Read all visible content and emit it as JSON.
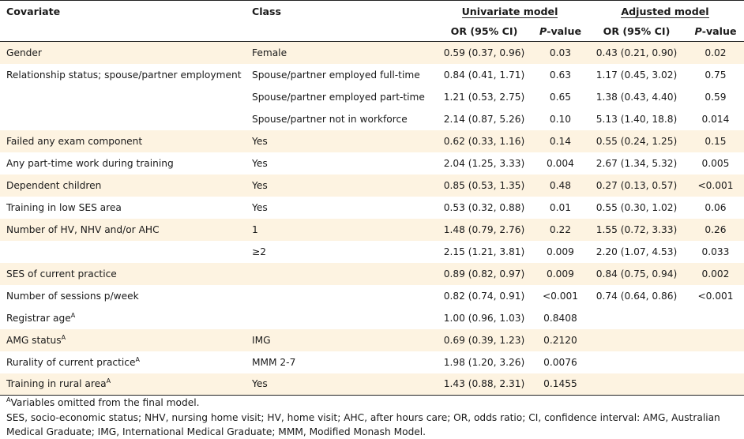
{
  "header": {
    "covariate": "Covariate",
    "class": "Class",
    "univariate": "Univariate model",
    "adjusted": "Adjusted model",
    "or_ci": "OR (95% CI)",
    "p_letter": "P",
    "p_suffix": "-value"
  },
  "rows": [
    {
      "covariate": "Gender",
      "sup": "",
      "class": "Female",
      "u_or": "0.59 (0.37, 0.96)",
      "u_p": "0.03",
      "a_or": "0.43 (0.21, 0.90)",
      "a_p": "0.02"
    },
    {
      "covariate": "Relationship status; spouse/partner employment",
      "sup": "",
      "class": "Spouse/partner employed full-time",
      "u_or": "0.84 (0.41, 1.71)",
      "u_p": "0.63",
      "a_or": "1.17 (0.45, 3.02)",
      "a_p": "0.75"
    },
    {
      "covariate": "",
      "sup": "",
      "class": "Spouse/partner employed part-time",
      "u_or": "1.21 (0.53, 2.75)",
      "u_p": "0.65",
      "a_or": "1.38 (0.43, 4.40)",
      "a_p": "0.59"
    },
    {
      "covariate": "",
      "sup": "",
      "class": "Spouse/partner not in workforce",
      "u_or": "2.14 (0.87, 5.26)",
      "u_p": "0.10",
      "a_or": "5.13 (1.40, 18.8)",
      "a_p": "0.014"
    },
    {
      "covariate": "Failed any exam component",
      "sup": "",
      "class": "Yes",
      "u_or": "0.62 (0.33, 1.16)",
      "u_p": "0.14",
      "a_or": "0.55 (0.24, 1.25)",
      "a_p": "0.15"
    },
    {
      "covariate": "Any part-time work during training",
      "sup": "",
      "class": "Yes",
      "u_or": "2.04 (1.25, 3.33)",
      "u_p": "0.004",
      "a_or": "2.67 (1.34, 5.32)",
      "a_p": "0.005"
    },
    {
      "covariate": "Dependent children",
      "sup": "",
      "class": "Yes",
      "u_or": "0.85 (0.53, 1.35)",
      "u_p": "0.48",
      "a_or": "0.27 (0.13, 0.57)",
      "a_p": "<0.001"
    },
    {
      "covariate": "Training in low SES area",
      "sup": "",
      "class": "Yes",
      "u_or": "0.53 (0.32, 0.88)",
      "u_p": "0.01",
      "a_or": "0.55 (0.30, 1.02)",
      "a_p": "0.06"
    },
    {
      "covariate": "Number of HV, NHV and/or AHC",
      "sup": "",
      "class": "1",
      "u_or": "1.48 (0.79, 2.76)",
      "u_p": "0.22",
      "a_or": "1.55 (0.72, 3.33)",
      "a_p": "0.26"
    },
    {
      "covariate": "",
      "sup": "",
      "class": "≥2",
      "u_or": "2.15 (1.21, 3.81)",
      "u_p": "0.009",
      "a_or": "2.20 (1.07, 4.53)",
      "a_p": "0.033"
    },
    {
      "covariate": "SES of current practice",
      "sup": "",
      "class": "",
      "u_or": "0.89 (0.82, 0.97)",
      "u_p": "0.009",
      "a_or": "0.84 (0.75, 0.94)",
      "a_p": "0.002"
    },
    {
      "covariate": "Number of sessions p/week",
      "sup": "",
      "class": "",
      "u_or": "0.82 (0.74, 0.91)",
      "u_p": "<0.001",
      "a_or": "0.74 (0.64, 0.86)",
      "a_p": "<0.001"
    },
    {
      "covariate": "Registrar age",
      "sup": "A",
      "class": "",
      "u_or": "1.00 (0.96, 1.03)",
      "u_p": "0.8408",
      "a_or": "",
      "a_p": ""
    },
    {
      "covariate": "AMG status",
      "sup": "A",
      "class": "IMG",
      "u_or": "0.69 (0.39, 1.23)",
      "u_p": "0.2120",
      "a_or": "",
      "a_p": ""
    },
    {
      "covariate": "Rurality of current practice",
      "sup": "A",
      "class": "MMM 2-7",
      "u_or": "1.98 (1.20, 3.26)",
      "u_p": "0.0076",
      "a_or": "",
      "a_p": ""
    },
    {
      "covariate": "Training in rural area",
      "sup": "A",
      "class": "Yes",
      "u_or": "1.43 (0.88, 2.31)",
      "u_p": "0.1455",
      "a_or": "",
      "a_p": ""
    }
  ],
  "footnotes": {
    "note_sup": "A",
    "note_text": "Variables omitted from the final model.",
    "abbrev": "SES, socio-economic status; NHV, nursing home visit; HV, home visit; AHC, after hours care; OR, odds ratio; CI, confidence interval: AMG, Australian Medical Graduate;  IMG, International Medical Graduate; MMM, Modified Monash Model."
  },
  "colors": {
    "shade": "#fdf3e1",
    "rule": "#222222",
    "text": "#1a1a1a"
  }
}
